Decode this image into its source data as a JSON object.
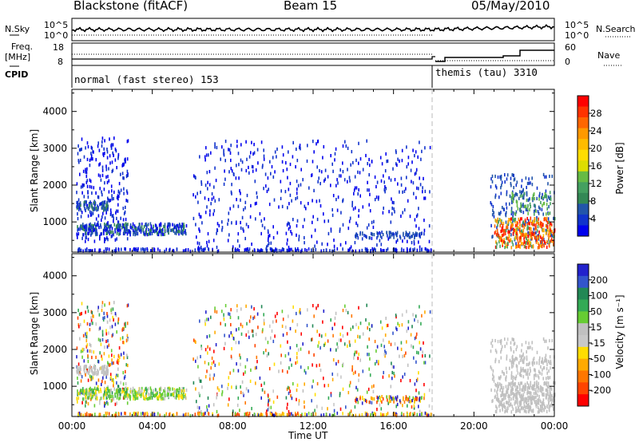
{
  "header": {
    "radar": "Blackstone (fitACF)",
    "beam": "Beam 15",
    "date": "05/May/2010"
  },
  "left_labels": {
    "nsky": "N.Sky",
    "freq": "Freq.",
    "mhz": "[MHz]",
    "cpid": "CPID"
  },
  "right_labels": {
    "nsearch": "N.Search",
    "nave": "Nave"
  },
  "nsky_axis": {
    "top": "10^5",
    "bottom": "10^0"
  },
  "nsearch_axis": {
    "top": "10^5",
    "bottom": "10^0"
  },
  "freq_axis": {
    "top": "18",
    "bottom": "8"
  },
  "nave_axis": {
    "top": "60",
    "bottom": "0"
  },
  "cpid": {
    "first": "normal (fast stereo) 153",
    "second": "themis (tau) 3310"
  },
  "chart_data": [
    {
      "type": "heatmap",
      "name": "power",
      "ylabel": "Slant Range [km]",
      "xlabel": "",
      "x_ticks": [
        "00:00",
        "04:00",
        "08:00",
        "12:00",
        "16:00",
        "20:00",
        "00:00"
      ],
      "y_ticks": [
        "1000",
        "2000",
        "3000",
        "4000"
      ],
      "colorbar": {
        "label": "Power [dB]",
        "ticks": [
          "28",
          "24",
          "20",
          "16",
          "12",
          "8",
          "4"
        ],
        "colors": [
          "#ff0000",
          "#ff3300",
          "#ff6600",
          "#ff9900",
          "#ffbb00",
          "#ffdd00",
          "#dddd00",
          "#66bb44",
          "#44a060",
          "#338855",
          "#2255aa",
          "#1133cc",
          "#0000ee"
        ]
      }
    },
    {
      "type": "heatmap",
      "name": "velocity",
      "ylabel": "Slant Range [km]",
      "xlabel": "Time UT",
      "x_ticks": [
        "00:00",
        "04:00",
        "08:00",
        "12:00",
        "16:00",
        "20:00",
        "00:00"
      ],
      "y_ticks": [
        "1000",
        "2000",
        "3000",
        "4000"
      ],
      "colorbar": {
        "label": "Velocity [m s⁻¹]",
        "ticks": [
          "200",
          "100",
          "50",
          "15",
          "-15",
          "-50",
          "-100",
          "-200"
        ],
        "colors": [
          "#2222cc",
          "#3355cc",
          "#228855",
          "#33aa55",
          "#66cc33",
          "#c0c0c0",
          "#c8c8c8",
          "#ffdd00",
          "#ffaa00",
          "#ff7700",
          "#ff4400",
          "#ff0000"
        ]
      }
    }
  ]
}
